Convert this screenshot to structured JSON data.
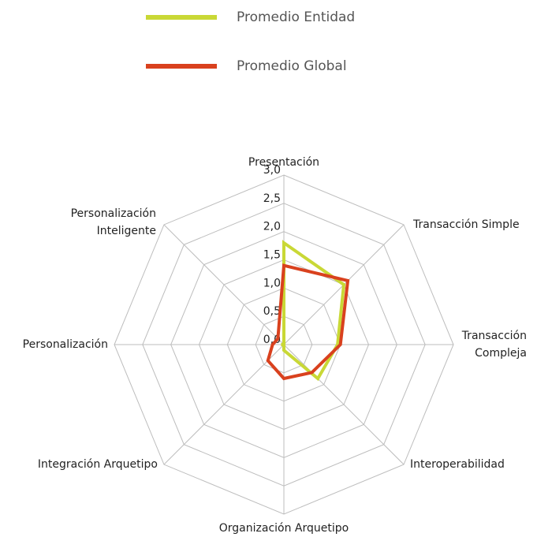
{
  "chart_data": {
    "type": "radar",
    "categories": [
      "Presentación",
      "Transacción Simple",
      "Transacción Compleja",
      "Interoperabilidad",
      "Organización Arquetipo",
      "Integración Arquetipo",
      "Personalización",
      "Personalización Inteligente"
    ],
    "series": [
      {
        "name": "Promedio Entidad",
        "color": "#c9d836",
        "values": [
          1.8,
          1.5,
          0.95,
          0.85,
          0.1,
          0,
          0.05,
          0
        ]
      },
      {
        "name": "Promedio Global",
        "color": "#d9411e",
        "values": [
          1.4,
          1.6,
          1.0,
          0.7,
          0.6,
          0.4,
          0.2,
          0.15
        ]
      }
    ],
    "ylim": [
      0,
      3
    ],
    "yticks": [
      {
        "value": 0,
        "label": "0,0"
      },
      {
        "value": 0.5,
        "label": "0,5"
      },
      {
        "value": 1,
        "label": "1,0"
      },
      {
        "value": 1.5,
        "label": "1,5"
      },
      {
        "value": 2,
        "label": "2,0"
      },
      {
        "value": 2.5,
        "label": "2,5"
      },
      {
        "value": 3,
        "label": "3,0"
      }
    ],
    "grid": true,
    "legend": "top"
  }
}
